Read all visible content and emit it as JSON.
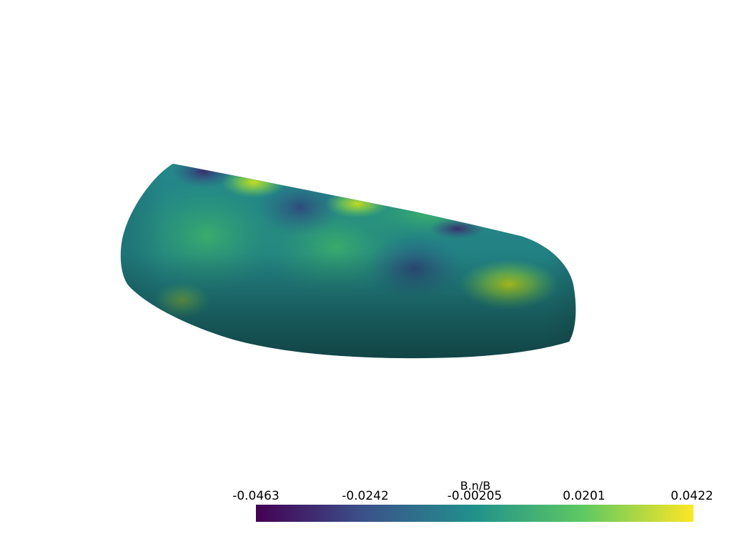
{
  "colorbar": {
    "title": "B.n/B",
    "min": -0.0463,
    "max": 0.0422,
    "ticks": [
      "-0.0463",
      "-0.0242",
      "-0.00205",
      "0.0201",
      "0.0422"
    ],
    "colormap": "viridis",
    "colors": [
      "#440154",
      "#3b528b",
      "#21918c",
      "#5ec962",
      "#fde725"
    ]
  }
}
